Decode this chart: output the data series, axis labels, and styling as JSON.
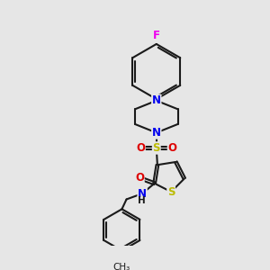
{
  "background_color": "#e6e6e6",
  "bond_color": "#1a1a1a",
  "bond_width": 1.5,
  "colors": {
    "N": "#0000ee",
    "O": "#dd0000",
    "S": "#bbbb00",
    "F": "#ee00ee",
    "C": "#1a1a1a"
  },
  "font_size": 8.5
}
